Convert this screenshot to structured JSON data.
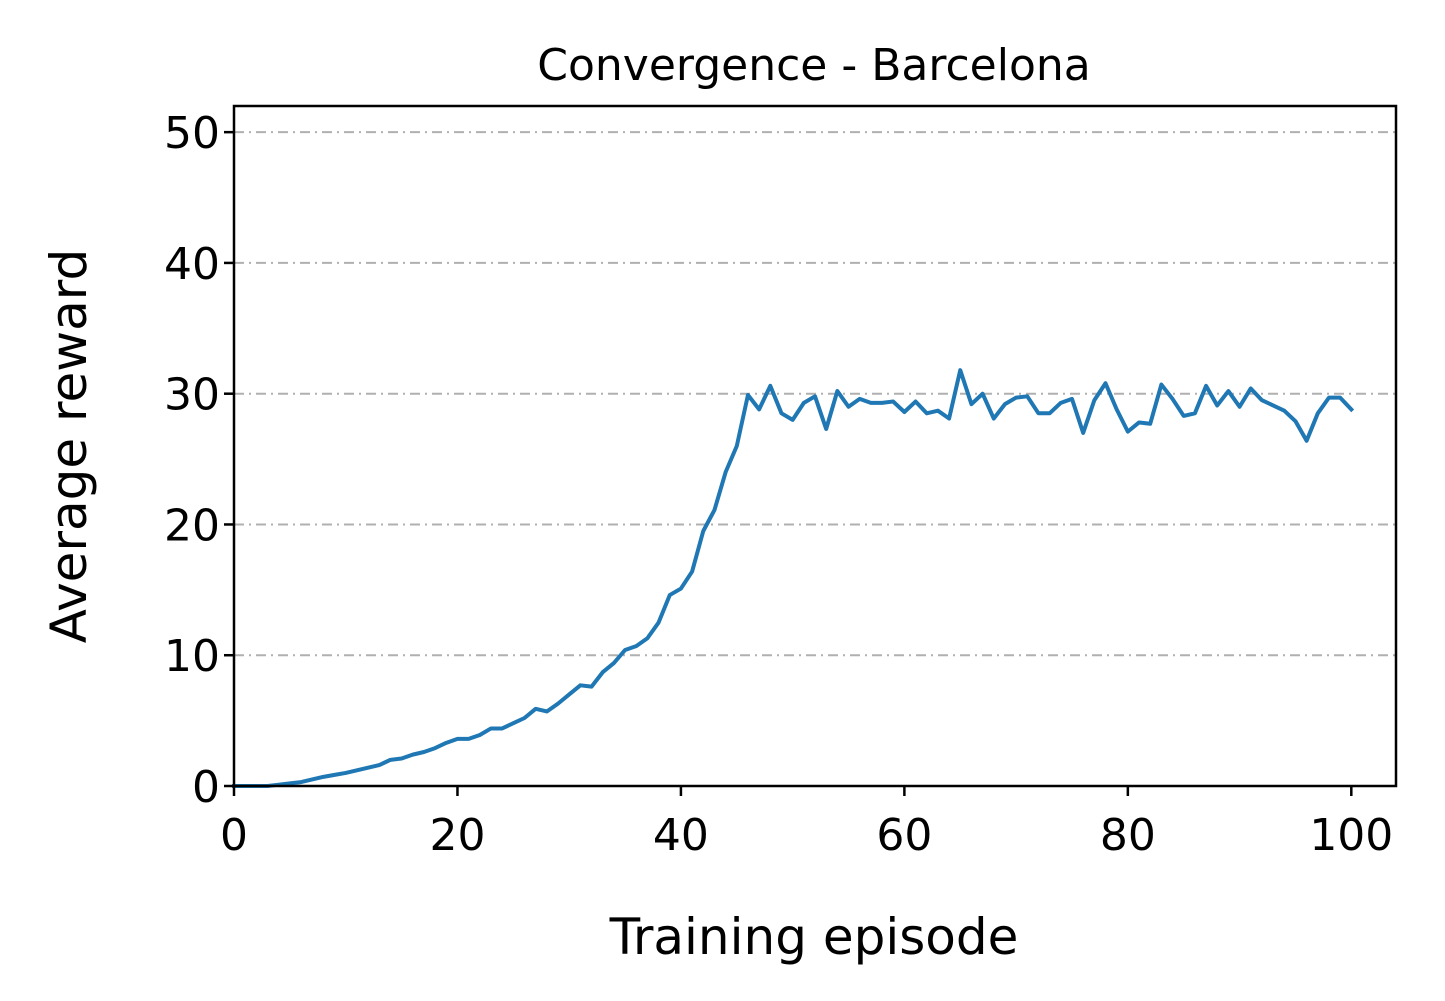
{
  "chart_data": {
    "type": "line",
    "title": "Convergence - Barcelona",
    "xlabel": "Training episode",
    "ylabel": "Average reward",
    "xlim": [
      0,
      104
    ],
    "ylim": [
      0,
      52
    ],
    "xticks": [
      0,
      20,
      40,
      60,
      80,
      100
    ],
    "yticks": [
      0,
      10,
      20,
      30,
      40,
      50
    ],
    "grid": {
      "axis": "y",
      "style": "dash-dot",
      "color": "#b0b0b0"
    },
    "line_color": "#1f77b4",
    "series": [
      {
        "x": [
          0,
          1,
          2,
          3,
          4,
          5,
          6,
          7,
          8,
          9,
          10,
          11,
          12,
          13,
          14,
          15,
          16,
          17,
          18,
          19,
          20,
          21,
          22,
          23,
          24,
          25,
          26,
          27,
          28,
          29,
          30,
          31,
          32,
          33,
          34,
          35,
          36,
          37,
          38,
          39,
          40,
          41,
          42,
          43,
          44,
          45,
          46,
          47,
          48,
          49,
          50,
          51,
          52,
          53,
          54,
          55,
          56,
          57,
          58,
          59,
          60,
          61,
          62,
          63,
          64,
          65,
          66,
          67,
          68,
          69,
          70,
          71,
          72,
          73,
          74,
          75,
          76,
          77,
          78,
          79,
          80,
          81,
          82,
          83,
          84,
          85,
          86,
          87,
          88,
          89,
          90,
          91,
          92,
          93,
          94,
          95,
          96,
          97,
          98,
          99,
          100
        ],
        "values": [
          0.0,
          0.0,
          0.0,
          0.0,
          0.1,
          0.2,
          0.3,
          0.5,
          0.7,
          0.85,
          1.0,
          1.2,
          1.4,
          1.6,
          2.0,
          2.1,
          2.4,
          2.6,
          2.9,
          3.3,
          3.6,
          3.6,
          3.9,
          4.4,
          4.4,
          4.8,
          5.2,
          5.9,
          5.7,
          6.3,
          7.0,
          7.7,
          7.6,
          8.7,
          9.4,
          10.4,
          10.7,
          11.3,
          12.5,
          14.6,
          15.1,
          16.4,
          19.5,
          21.1,
          24.0,
          26.0,
          29.9,
          28.8,
          30.6,
          28.5,
          28.0,
          29.3,
          29.8,
          27.3,
          30.2,
          29.0,
          29.6,
          29.3,
          29.3,
          29.4,
          28.6,
          29.4,
          28.5,
          28.7,
          28.1,
          31.8,
          29.2,
          30.0,
          28.1,
          29.2,
          29.7,
          29.8,
          28.5,
          28.5,
          29.3,
          29.6,
          27.0,
          29.5,
          30.8,
          28.8,
          27.1,
          27.8,
          27.7,
          30.7,
          29.6,
          28.3,
          28.5,
          30.6,
          29.1,
          30.2,
          29.0,
          30.4,
          29.5,
          29.1,
          28.7,
          27.9,
          26.4,
          28.5,
          29.7,
          29.7,
          28.8
        ]
      }
    ]
  }
}
